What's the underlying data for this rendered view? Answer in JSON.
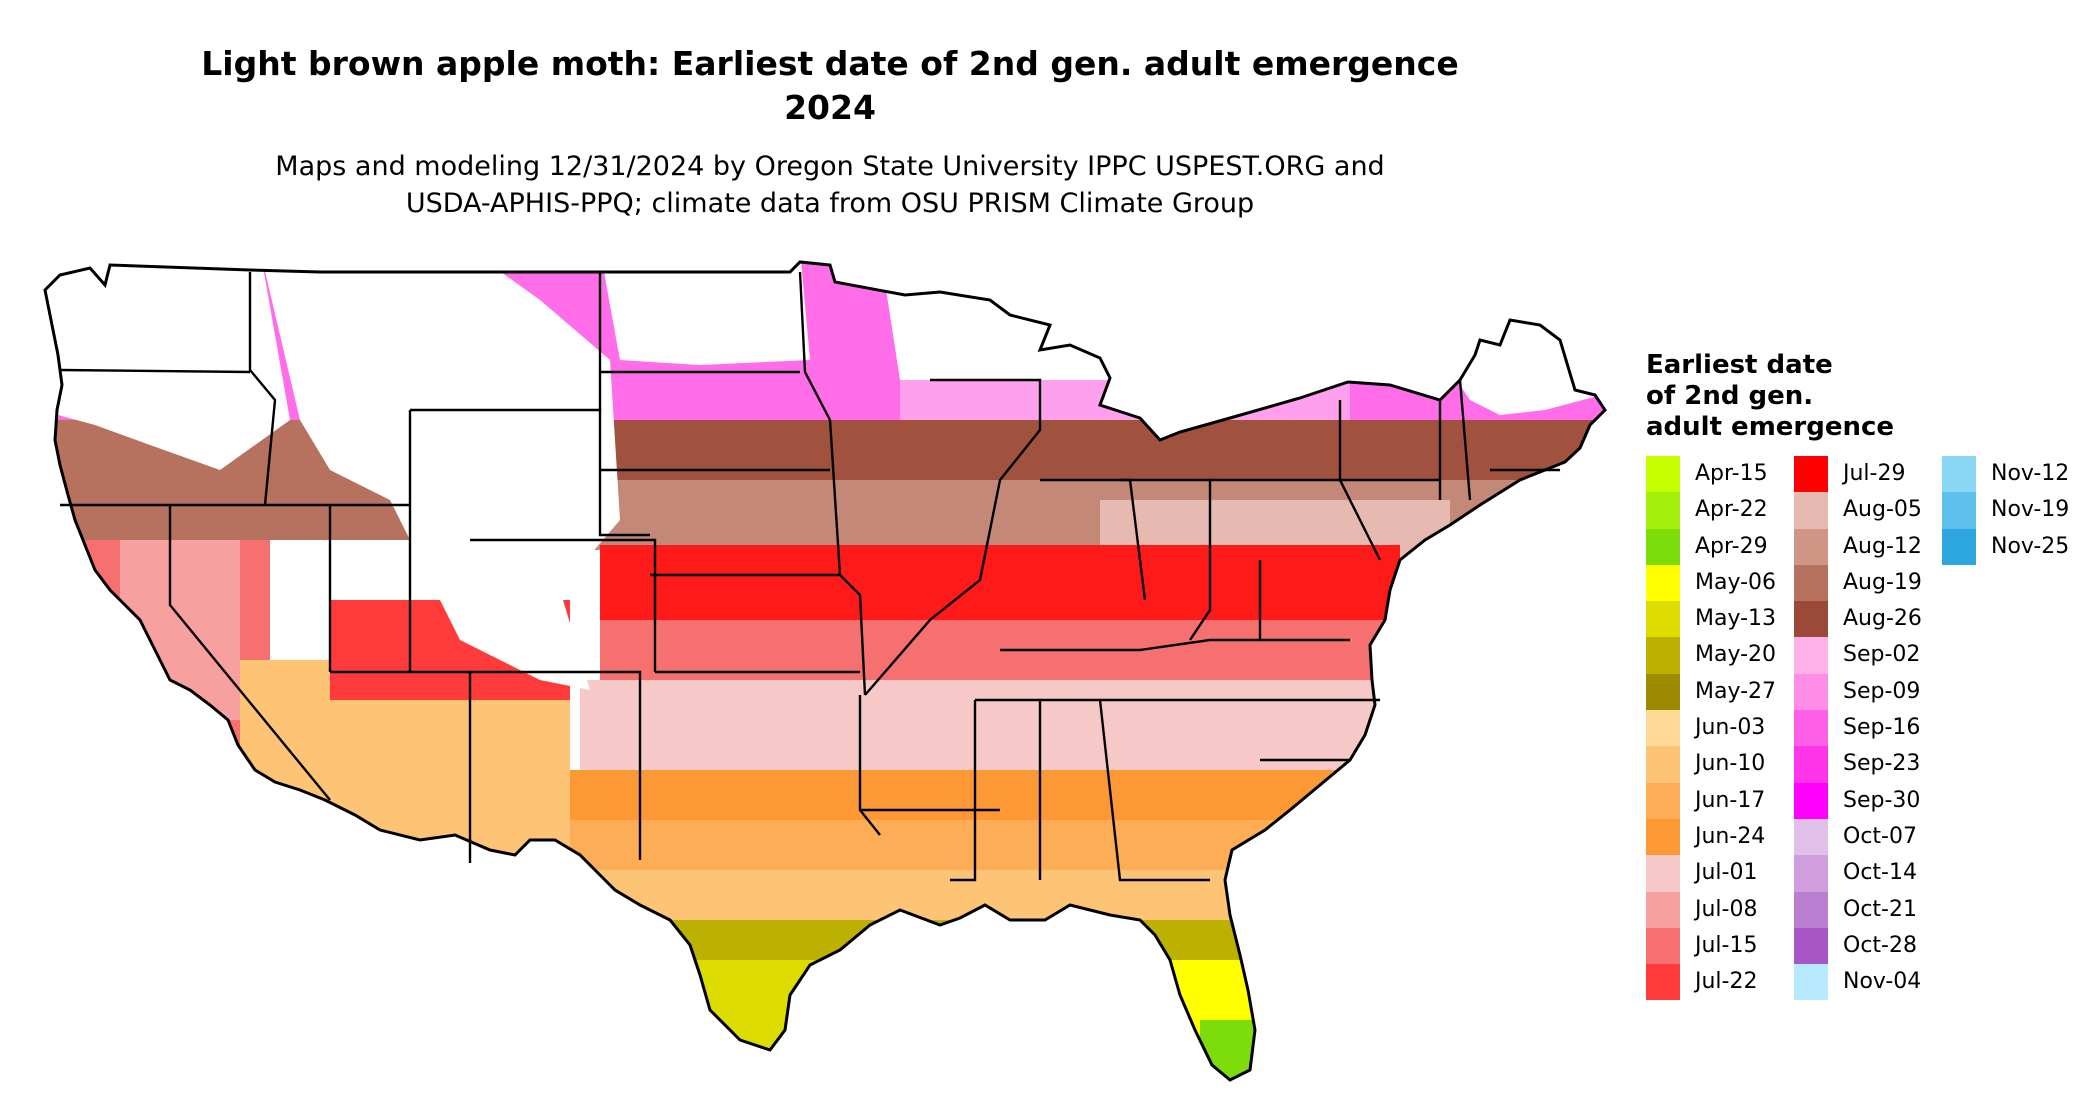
{
  "title": "Light brown apple moth: Earliest date of 2nd gen. adult emergence\n2024",
  "subtitle": "Maps and modeling 12/31/2024 by Oregon State University IPPC USPEST.ORG and\nUSDA-APHIS-PPQ; climate data from OSU PRISM Climate Group",
  "legend": {
    "title": "Earliest date\nof 2nd gen.\nadult emergence",
    "columns": [
      [
        {
          "label": "Apr-15",
          "color": "#c6ff00"
        },
        {
          "label": "Apr-22",
          "color": "#a6ef0a"
        },
        {
          "label": "Apr-29",
          "color": "#7ddd0b"
        },
        {
          "label": "May-06",
          "color": "#ffff00"
        },
        {
          "label": "May-13",
          "color": "#dcdc00"
        },
        {
          "label": "May-20",
          "color": "#bcb000"
        },
        {
          "label": "May-27",
          "color": "#9c8a00"
        },
        {
          "label": "Jun-03",
          "color": "#ffd995"
        },
        {
          "label": "Jun-10",
          "color": "#fec475"
        },
        {
          "label": "Jun-17",
          "color": "#fdad55"
        },
        {
          "label": "Jun-24",
          "color": "#fc9935"
        },
        {
          "label": "Jul-01",
          "color": "#f7c8c8"
        },
        {
          "label": "Jul-08",
          "color": "#f7a0a0"
        },
        {
          "label": "Jul-15",
          "color": "#f77070"
        },
        {
          "label": "Jul-22",
          "color": "#ff3a3a"
        }
      ],
      [
        {
          "label": "Jul-29",
          "color": "#ff0000"
        },
        {
          "label": "Aug-05",
          "color": "#e6bab0"
        },
        {
          "label": "Aug-12",
          "color": "#cf9585"
        },
        {
          "label": "Aug-19",
          "color": "#b6715f"
        },
        {
          "label": "Aug-26",
          "color": "#9c4a38"
        },
        {
          "label": "Sep-02",
          "color": "#ffb2ea"
        },
        {
          "label": "Sep-09",
          "color": "#ff8ce6"
        },
        {
          "label": "Sep-16",
          "color": "#ff5ee6"
        },
        {
          "label": "Sep-23",
          "color": "#ff35ea"
        },
        {
          "label": "Sep-30",
          "color": "#ff00ff"
        },
        {
          "label": "Oct-07",
          "color": "#e0c0e8"
        },
        {
          "label": "Oct-14",
          "color": "#d09edc"
        },
        {
          "label": "Oct-21",
          "color": "#bb7fd2"
        },
        {
          "label": "Oct-28",
          "color": "#a855c6"
        },
        {
          "label": "Nov-04",
          "color": "#b8eaff"
        }
      ],
      [
        {
          "label": "Nov-12",
          "color": "#8ad6f5"
        },
        {
          "label": "Nov-19",
          "color": "#5fc1ee"
        },
        {
          "label": "Nov-25",
          "color": "#2ea6e0"
        }
      ]
    ]
  }
}
